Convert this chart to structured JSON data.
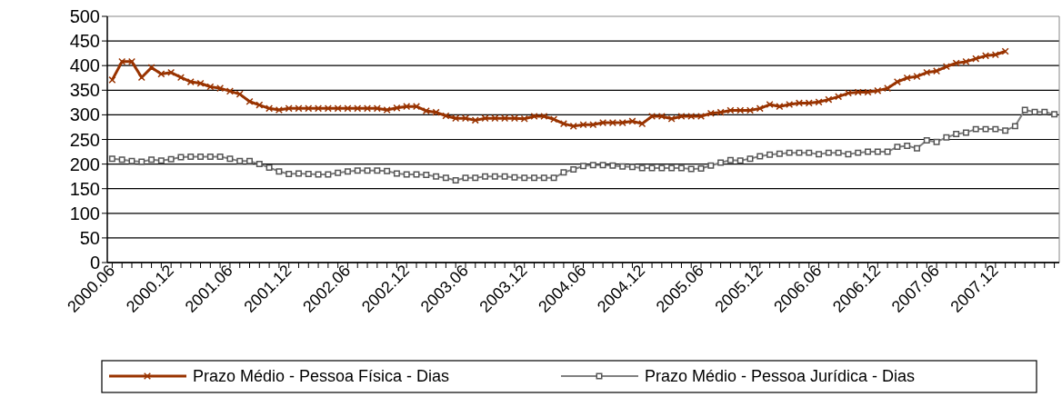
{
  "chart_data": {
    "type": "line",
    "categories": [
      "2000.06",
      null,
      null,
      null,
      null,
      null,
      "2000.12",
      null,
      null,
      null,
      null,
      null,
      "2001.06",
      null,
      null,
      null,
      null,
      null,
      "2001.12",
      null,
      null,
      null,
      null,
      null,
      "2002.06",
      null,
      null,
      null,
      null,
      null,
      "2002.12",
      null,
      null,
      null,
      null,
      null,
      "2003.06",
      null,
      null,
      null,
      null,
      null,
      "2003.12",
      null,
      null,
      null,
      null,
      null,
      "2004.06",
      null,
      null,
      null,
      null,
      null,
      "2004.12",
      null,
      null,
      null,
      null,
      null,
      "2005.06",
      null,
      null,
      null,
      null,
      null,
      "2005.12",
      null,
      null,
      null,
      null,
      null,
      "2006.06",
      null,
      null,
      null,
      null,
      null,
      "2006.12",
      null,
      null,
      null,
      null,
      null,
      "2007.06",
      null,
      null,
      null,
      null,
      null,
      "2007.12",
      null,
      null,
      null,
      null,
      null,
      null
    ],
    "series": [
      {
        "name": "Prazo Médio - Pessoa Física - Dias",
        "color": "#993300",
        "marker": "cross",
        "values": [
          371,
          408,
          408,
          376,
          396,
          383,
          386,
          376,
          367,
          364,
          357,
          354,
          348,
          342,
          327,
          320,
          313,
          310,
          313,
          313,
          313,
          313,
          313,
          313,
          313,
          313,
          313,
          313,
          310,
          314,
          317,
          317,
          308,
          305,
          298,
          293,
          293,
          289,
          293,
          293,
          293,
          293,
          292,
          297,
          297,
          291,
          282,
          277,
          280,
          280,
          284,
          284,
          284,
          287,
          282,
          297,
          297,
          292,
          297,
          297,
          297,
          303,
          305,
          309,
          309,
          309,
          313,
          321,
          317,
          321,
          324,
          324,
          326,
          331,
          337,
          344,
          346,
          346,
          349,
          354,
          367,
          375,
          378,
          386,
          389,
          398,
          405,
          408,
          414,
          420,
          422,
          429,
          null,
          null,
          null,
          null,
          null
        ]
      },
      {
        "name": "Prazo Médio - Pessoa Jurídica - Dias",
        "color": "#808080",
        "marker": "square",
        "values": [
          211,
          209,
          206,
          205,
          209,
          207,
          210,
          214,
          215,
          215,
          215,
          215,
          211,
          206,
          206,
          200,
          193,
          185,
          180,
          181,
          180,
          179,
          179,
          182,
          185,
          187,
          187,
          187,
          186,
          181,
          179,
          179,
          178,
          175,
          172,
          167,
          172,
          172,
          175,
          175,
          175,
          173,
          172,
          172,
          172,
          172,
          183,
          189,
          196,
          198,
          198,
          197,
          195,
          194,
          192,
          192,
          192,
          192,
          192,
          190,
          191,
          197,
          203,
          208,
          207,
          211,
          216,
          219,
          221,
          223,
          223,
          223,
          220,
          223,
          223,
          220,
          223,
          225,
          225,
          225,
          235,
          237,
          232,
          248,
          245,
          254,
          261,
          264,
          271,
          271,
          271,
          268,
          277,
          310,
          306,
          306,
          301
        ]
      }
    ],
    "ylim": [
      0,
      500
    ],
    "yticks": [
      0,
      50,
      100,
      150,
      200,
      250,
      300,
      350,
      400,
      450,
      500
    ],
    "grid": "y",
    "legend": "bottom",
    "line_style": "solid"
  }
}
